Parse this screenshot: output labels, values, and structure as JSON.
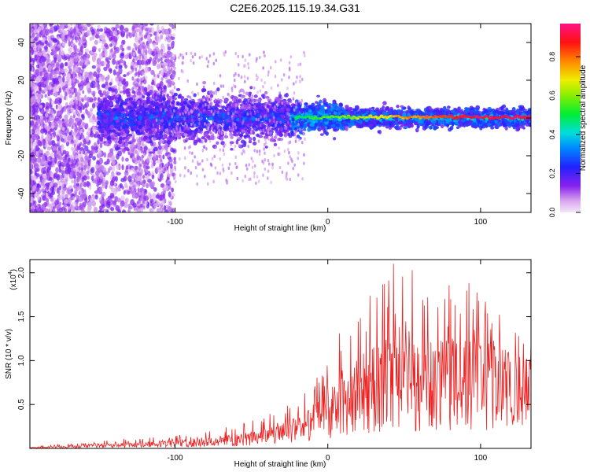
{
  "title": "C2E6.2025.115.19.34.G31",
  "colors": {
    "snr_line": "#ee2222",
    "frame": "#000000",
    "background": "#ffffff"
  },
  "chart_data": [
    {
      "type": "heatmap",
      "xlabel": "Height of straight line (km)",
      "ylabel": "Frequency (Hz)",
      "xlim": [
        -195,
        133
      ],
      "ylim": [
        -50,
        50
      ],
      "x_ticks": [
        -100,
        0,
        100
      ],
      "y_ticks": [
        -40,
        -20,
        0,
        20,
        40
      ],
      "colorbar": {
        "label": "Normalized spectral amplitude",
        "range": [
          0,
          0.97
        ],
        "ticks": [
          "0.0",
          "0.2",
          "0.4",
          "0.6",
          "0.8"
        ],
        "colormap": "rainbow (pale violet - violet - blue - cyan - green - yellow - orange - red - magenta)"
      },
      "structure": [
        {
          "x_from": -195,
          "x_to": -110,
          "freq_spread_hz": 50,
          "amplitude": "0.05-0.2 (scattered noise)"
        },
        {
          "x_from": -150,
          "x_to": -25,
          "freq_spread_hz": 10,
          "amplitude": "0.15-0.35"
        },
        {
          "x_from": -25,
          "x_to": 10,
          "freq_spread_hz": 5,
          "amplitude": "0.3-0.55"
        },
        {
          "x_from": 10,
          "x_to": 133,
          "freq_spread_hz": 3,
          "amplitude": "0.6-0.95, peak line at 0 Hz"
        }
      ]
    },
    {
      "type": "line",
      "xlabel": "Height of straight line (km)",
      "ylabel": "SNR (10 * v/v)",
      "y_multiplier": "(x10",
      "y_multiplier_exp": "4",
      "y_multiplier_close": ")",
      "xlim": [
        -195,
        133
      ],
      "ylim": [
        0,
        2.15
      ],
      "x_ticks": [
        -100,
        0,
        100
      ],
      "y_ticks": [
        "0.5",
        "1.0",
        "1.5",
        "2.0"
      ],
      "series": [
        {
          "x": [
            -195,
            -160,
            -130,
            -100,
            -75,
            -50,
            -30,
            -15,
            0,
            10,
            20,
            30,
            45,
            60,
            75,
            90,
            100,
            110,
            120,
            130
          ],
          "envelope_max": [
            0.03,
            0.06,
            0.12,
            0.15,
            0.22,
            0.32,
            0.45,
            0.65,
            1.05,
            1.5,
            1.75,
            1.8,
            2.15,
            2.0,
            1.85,
            1.95,
            1.75,
            1.6,
            1.45,
            1.2
          ],
          "envelope_typ": [
            0.01,
            0.03,
            0.05,
            0.07,
            0.1,
            0.15,
            0.22,
            0.32,
            0.5,
            0.65,
            0.8,
            0.9,
            1.0,
            0.95,
            0.95,
            1.0,
            0.95,
            0.9,
            0.85,
            0.8
          ]
        }
      ]
    }
  ]
}
